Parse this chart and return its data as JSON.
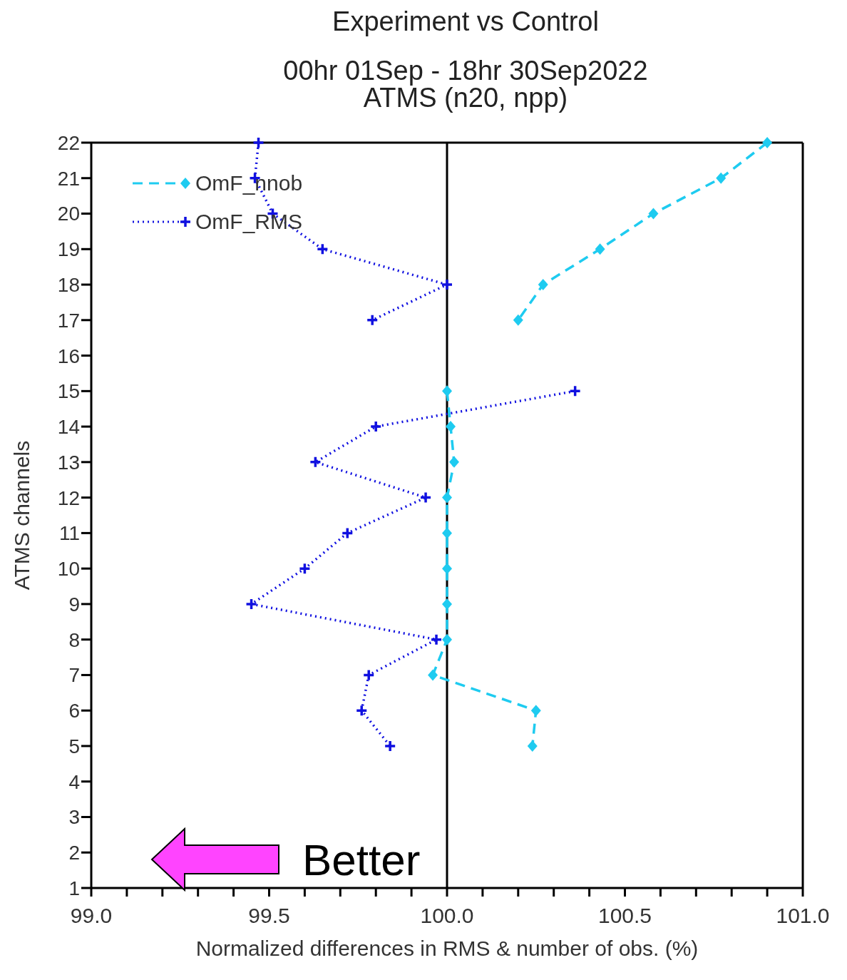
{
  "chart_data": {
    "type": "line",
    "title": "Experiment vs Control",
    "subtitle": "00hr 01Sep - 18hr 30Sep2022\nATMS (n20, npp)",
    "xlabel": "Normalized differences in RMS & number of obs. (%)",
    "ylabel": "ATMS channels",
    "orientation": "horizontal",
    "categories": [
      "22",
      "21",
      "20",
      "19",
      "18",
      "17",
      "16",
      "15",
      "14",
      "13",
      "12",
      "11",
      "10",
      "9",
      "8",
      "7",
      "6",
      "5",
      "4",
      "3",
      "2",
      "1"
    ],
    "series": [
      {
        "name": "OmF_nnob",
        "color": "#1ecbf0",
        "marker": "diamond",
        "line_style": "dashed",
        "values": [
          100.9,
          100.77,
          100.58,
          100.43,
          100.27,
          100.2,
          null,
          100.0,
          100.01,
          100.02,
          100.0,
          100.0,
          100.0,
          100.0,
          100.0,
          99.96,
          100.25,
          100.24,
          null,
          null,
          null,
          null
        ]
      },
      {
        "name": "OmF_RMS",
        "color": "#1010e0",
        "marker": "cross",
        "line_style": "dotted",
        "values": [
          99.47,
          99.46,
          99.51,
          99.65,
          100.0,
          99.79,
          null,
          100.36,
          99.8,
          99.63,
          99.94,
          99.72,
          99.6,
          99.45,
          99.97,
          99.78,
          99.76,
          99.84,
          null,
          null,
          null,
          null
        ]
      }
    ],
    "xlim": [
      99,
      101
    ],
    "xticks": [
      {
        "value": 99,
        "label": "99.0"
      },
      {
        "value": 99.1,
        "label": null
      },
      {
        "value": 99.2,
        "label": null
      },
      {
        "value": 99.3,
        "label": null
      },
      {
        "value": 99.4,
        "label": null
      },
      {
        "value": 99.5,
        "label": "99.5"
      },
      {
        "value": 99.6,
        "label": null
      },
      {
        "value": 99.7,
        "label": null
      },
      {
        "value": 99.8,
        "label": null
      },
      {
        "value": 99.9,
        "label": null
      },
      {
        "value": 100,
        "label": "100.0"
      },
      {
        "value": 100.1,
        "label": null
      },
      {
        "value": 100.2,
        "label": null
      },
      {
        "value": 100.3,
        "label": null
      },
      {
        "value": 100.4,
        "label": null
      },
      {
        "value": 100.5,
        "label": "100.5"
      },
      {
        "value": 100.6,
        "label": null
      },
      {
        "value": 100.7,
        "label": null
      },
      {
        "value": 100.8,
        "label": null
      },
      {
        "value": 100.9,
        "label": null
      },
      {
        "value": 101,
        "label": "101.0"
      }
    ],
    "ref_lines": [
      {
        "axis": "x",
        "value": 100,
        "color": "#000000"
      }
    ],
    "annotations": [
      "Better"
    ],
    "legend": "top left"
  }
}
